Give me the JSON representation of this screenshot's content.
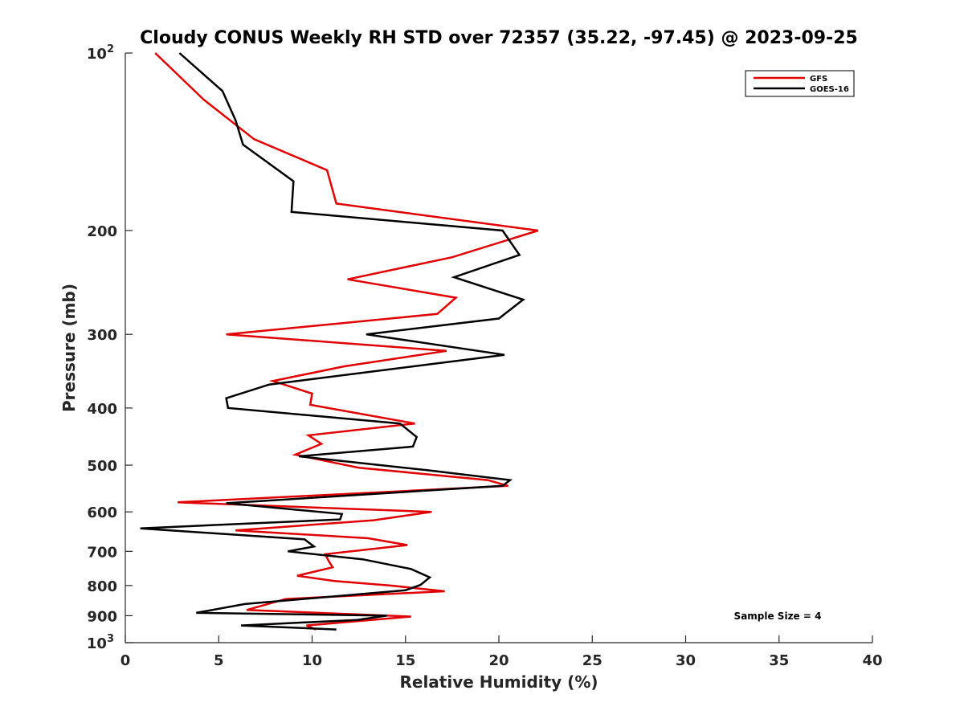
{
  "chart_data": {
    "type": "line",
    "title": "Cloudy CONUS Weekly RH STD over 72357 (35.22, -97.45) @ 2023-09-25",
    "xlabel": "Relative Humidity (%)",
    "ylabel": "Pressure (mb)",
    "xlim": [
      0,
      40
    ],
    "ylim": [
      100,
      1000
    ],
    "y_scale": "log",
    "y_reversed": true,
    "x_ticks": [
      0,
      5,
      10,
      15,
      20,
      25,
      30,
      35,
      40
    ],
    "y_ticks": [
      {
        "value": 100,
        "label": "10",
        "exp": "2"
      },
      {
        "value": 200,
        "label": "200"
      },
      {
        "value": 300,
        "label": "300"
      },
      {
        "value": 400,
        "label": "400"
      },
      {
        "value": 500,
        "label": "500"
      },
      {
        "value": 600,
        "label": "600"
      },
      {
        "value": 700,
        "label": "700"
      },
      {
        "value": 800,
        "label": "800"
      },
      {
        "value": 900,
        "label": "900"
      },
      {
        "value": 1000,
        "label": "10",
        "exp": "3"
      }
    ],
    "grid": false,
    "legend_position": "top-right",
    "series": [
      {
        "name": "GFS",
        "color": "#e00000",
        "points": [
          [
            1.6,
            100
          ],
          [
            4.2,
            120
          ],
          [
            6.9,
            140
          ],
          [
            10.8,
            158
          ],
          [
            11.3,
            180
          ],
          [
            22.1,
            200
          ],
          [
            17.5,
            222
          ],
          [
            11.9,
            242
          ],
          [
            17.7,
            260
          ],
          [
            16.7,
            277
          ],
          [
            5.4,
            300
          ],
          [
            17.2,
            320
          ],
          [
            11.7,
            340
          ],
          [
            7.9,
            360
          ],
          [
            10.0,
            378
          ],
          [
            9.9,
            395
          ],
          [
            15.5,
            425
          ],
          [
            9.8,
            445
          ],
          [
            10.5,
            460
          ],
          [
            9.1,
            480
          ],
          [
            12.5,
            505
          ],
          [
            19.4,
            530
          ],
          [
            20.5,
            542
          ],
          [
            2.8,
            578
          ],
          [
            16.4,
            600
          ],
          [
            13.3,
            620
          ],
          [
            5.9,
            645
          ],
          [
            13.0,
            665
          ],
          [
            15.1,
            683
          ],
          [
            10.7,
            708
          ],
          [
            10.9,
            728
          ],
          [
            11.1,
            745
          ],
          [
            9.2,
            770
          ],
          [
            11.2,
            786
          ],
          [
            14.2,
            800
          ],
          [
            17.1,
            818
          ],
          [
            8.6,
            843
          ],
          [
            6.5,
            880
          ],
          [
            15.3,
            903
          ],
          [
            9.7,
            935
          ],
          [
            10.2,
            950
          ]
        ]
      },
      {
        "name": "GOES-16",
        "color": "#000000",
        "points": [
          [
            2.9,
            100
          ],
          [
            5.2,
            116
          ],
          [
            5.9,
            130
          ],
          [
            6.3,
            143
          ],
          [
            9.0,
            165
          ],
          [
            8.9,
            186
          ],
          [
            20.2,
            200
          ],
          [
            21.1,
            220
          ],
          [
            17.6,
            240
          ],
          [
            21.3,
            262
          ],
          [
            20.0,
            282
          ],
          [
            12.9,
            300
          ],
          [
            20.3,
            325
          ],
          [
            7.7,
            365
          ],
          [
            5.4,
            385
          ],
          [
            5.5,
            400
          ],
          [
            14.7,
            425
          ],
          [
            15.6,
            448
          ],
          [
            15.4,
            465
          ],
          [
            9.3,
            483
          ],
          [
            16.2,
            510
          ],
          [
            20.6,
            530
          ],
          [
            20.2,
            542
          ],
          [
            5.4,
            580
          ],
          [
            11.6,
            605
          ],
          [
            11.5,
            618
          ],
          [
            0.8,
            640
          ],
          [
            9.6,
            668
          ],
          [
            10.1,
            687
          ],
          [
            8.7,
            700
          ],
          [
            12.7,
            722
          ],
          [
            15.3,
            750
          ],
          [
            16.3,
            775
          ],
          [
            15.8,
            798
          ],
          [
            15.0,
            815
          ],
          [
            6.4,
            860
          ],
          [
            3.8,
            890
          ],
          [
            14.0,
            900
          ],
          [
            12.4,
            915
          ],
          [
            6.2,
            935
          ],
          [
            11.3,
            950
          ]
        ]
      }
    ],
    "annotations": [
      {
        "text": "Sample Size = 4"
      }
    ]
  }
}
